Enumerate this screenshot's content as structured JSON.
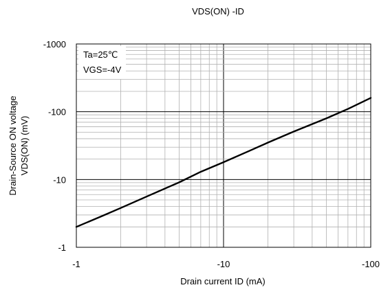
{
  "chart_data": {
    "type": "line",
    "title": "VDS(ON) -ID",
    "xlabel": "Drain current  ID (mA)",
    "ylabel_line1": "Drain-Source ON voltage",
    "ylabel_line2": "VDS(ON) (mV)",
    "x_scale": "log",
    "y_scale": "log",
    "xlim": [
      1,
      100
    ],
    "ylim": [
      1,
      1000
    ],
    "x_ticks": [
      {
        "value": 1,
        "label": "-1"
      },
      {
        "value": 10,
        "label": "-10"
      },
      {
        "value": 100,
        "label": "-100"
      }
    ],
    "y_ticks": [
      {
        "value": 1,
        "label": "-1"
      },
      {
        "value": 10,
        "label": "-10"
      },
      {
        "value": 100,
        "label": "-100"
      },
      {
        "value": 1000,
        "label": "-1000"
      }
    ],
    "grid": true,
    "annotations": [
      "Ta=25℃",
      "VGS=-4V"
    ],
    "series": [
      {
        "x": [
          1,
          1.5,
          2,
          3,
          5,
          7,
          10,
          15,
          20,
          30,
          50,
          70,
          100
        ],
        "values": [
          2,
          2.9,
          3.8,
          5.6,
          9.1,
          13,
          18,
          26.5,
          35,
          51,
          80,
          110,
          160
        ]
      }
    ]
  }
}
